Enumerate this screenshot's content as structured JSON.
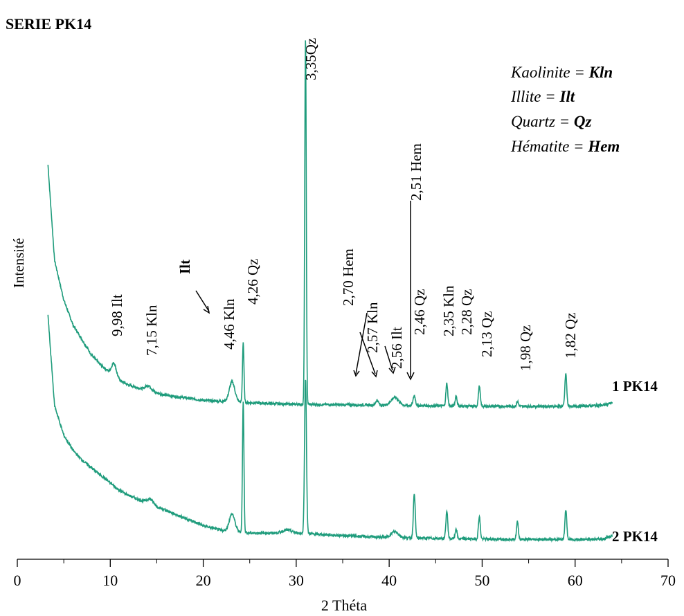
{
  "chart_data": {
    "type": "line",
    "title": "SERIE PK14",
    "xlabel": "2 Théta",
    "ylabel": "Intensité",
    "xlim": [
      0,
      70
    ],
    "ylim": [
      0,
      100
    ],
    "xticks": [
      "0",
      "10",
      "20",
      "30",
      "40",
      "50",
      "60",
      "70"
    ],
    "grid": false,
    "legend_position": "top-right",
    "legend": [
      {
        "name": "Kaolinite = ",
        "code": "Kln"
      },
      {
        "name": "Illite = ",
        "code": "Ilt"
      },
      {
        "name": "Quartz = ",
        "code": "Qz"
      },
      {
        "name": "Hématite = ",
        "code": "Hem"
      }
    ],
    "series": [
      {
        "name": "1 PK14",
        "color": "#1f9c7c",
        "baseline": 31,
        "background": [
          [
            3.3,
            79
          ],
          [
            4,
            60
          ],
          [
            5,
            52
          ],
          [
            6,
            47
          ],
          [
            7,
            44
          ],
          [
            8,
            41
          ],
          [
            9,
            39
          ],
          [
            10,
            37.5
          ],
          [
            11,
            36
          ],
          [
            12,
            35
          ],
          [
            14,
            34
          ],
          [
            16,
            33
          ],
          [
            18,
            32.5
          ],
          [
            20,
            32
          ],
          [
            22,
            31.8
          ],
          [
            25,
            31.5
          ],
          [
            30,
            31.2
          ],
          [
            40,
            31
          ],
          [
            50,
            30.8
          ],
          [
            60,
            30.8
          ],
          [
            63,
            31
          ],
          [
            64,
            31.5
          ]
        ],
        "peaks": [
          {
            "x": 10.4,
            "h": 2.5,
            "w": 0.25
          },
          {
            "x": 14.1,
            "h": 1.0,
            "w": 0.3
          },
          {
            "x": 23.1,
            "h": 4.0,
            "w": 0.3
          },
          {
            "x": 24.3,
            "h": 12.0,
            "w": 0.08
          },
          {
            "x": 31.0,
            "h": 73.0,
            "w": 0.08
          },
          {
            "x": 38.7,
            "h": 1.0,
            "w": 0.15
          },
          {
            "x": 40.6,
            "h": 1.6,
            "w": 0.4
          },
          {
            "x": 42.7,
            "h": 2.0,
            "w": 0.12
          },
          {
            "x": 46.2,
            "h": 4.5,
            "w": 0.1
          },
          {
            "x": 47.2,
            "h": 2.0,
            "w": 0.1
          },
          {
            "x": 49.7,
            "h": 4.0,
            "w": 0.1
          },
          {
            "x": 53.8,
            "h": 1.0,
            "w": 0.1
          },
          {
            "x": 59.0,
            "h": 6.5,
            "w": 0.1
          }
        ]
      },
      {
        "name": "2 PK14",
        "color": "#1f9c7c",
        "baseline": 4,
        "background": [
          [
            3.3,
            49
          ],
          [
            4,
            31
          ],
          [
            5,
            25
          ],
          [
            6,
            22
          ],
          [
            7,
            20
          ],
          [
            8,
            18.5
          ],
          [
            9,
            17
          ],
          [
            10,
            15.5
          ],
          [
            11,
            14
          ],
          [
            12,
            13
          ],
          [
            14,
            11.5
          ],
          [
            16,
            10
          ],
          [
            18,
            8.5
          ],
          [
            20,
            7
          ],
          [
            22,
            6
          ],
          [
            25,
            5.5
          ],
          [
            30,
            5.5
          ],
          [
            35,
            5
          ],
          [
            40,
            4.6
          ],
          [
            50,
            4.3
          ],
          [
            60,
            4.2
          ],
          [
            63,
            4.3
          ],
          [
            64,
            5
          ]
        ],
        "peaks": [
          {
            "x": 14.3,
            "h": 1.0,
            "w": 0.35
          },
          {
            "x": 23.1,
            "h": 3.5,
            "w": 0.3
          },
          {
            "x": 24.3,
            "h": 26.0,
            "w": 0.08
          },
          {
            "x": 29.0,
            "h": 0.6,
            "w": 0.5
          },
          {
            "x": 31.0,
            "h": 31.0,
            "w": 0.1
          },
          {
            "x": 40.6,
            "h": 1.2,
            "w": 0.4
          },
          {
            "x": 42.7,
            "h": 9.0,
            "w": 0.1
          },
          {
            "x": 46.2,
            "h": 5.5,
            "w": 0.1
          },
          {
            "x": 47.2,
            "h": 2.0,
            "w": 0.1
          },
          {
            "x": 49.7,
            "h": 4.5,
            "w": 0.1
          },
          {
            "x": 53.8,
            "h": 3.5,
            "w": 0.1
          },
          {
            "x": 59.0,
            "h": 6.0,
            "w": 0.1
          }
        ]
      }
    ],
    "annotations": [
      {
        "id": "ann-998",
        "text": "9,98 Ilt",
        "x": 10.4
      },
      {
        "id": "ann-715",
        "text": "7,15  Kln",
        "x": 14.0
      },
      {
        "id": "ann-ilt",
        "text": "Ilt",
        "x": 18.5
      },
      {
        "id": "ann-446",
        "text": "4,46 Kln",
        "x": 22.6
      },
      {
        "id": "ann-426",
        "text": "4,26 Qz",
        "x": 24.9
      },
      {
        "id": "ann-335",
        "text": "3,35Qz",
        "x": 31.0
      },
      {
        "id": "ann-270",
        "text": "2,70 Hem",
        "x": 35.8
      },
      {
        "id": "ann-257",
        "text": "2,57  Kln",
        "x": 38.0
      },
      {
        "id": "ann-256",
        "text": "2,56 Ilt",
        "x": 40.3
      },
      {
        "id": "ann-251",
        "text": "2,51 Hem",
        "x": 42.3
      },
      {
        "id": "ann-246",
        "text": "2,46 Qz",
        "x": 43.0
      },
      {
        "id": "ann-235",
        "text": "2,35 Kln",
        "x": 46.2
      },
      {
        "id": "ann-228",
        "text": "2,28  Qz",
        "x": 47.4
      },
      {
        "id": "ann-213",
        "text": "2,13  Qz",
        "x": 49.8
      },
      {
        "id": "ann-198",
        "text": "1,98  Qz",
        "x": 53.6
      },
      {
        "id": "ann-182",
        "text": "1,82  Qz",
        "x": 58.9
      }
    ]
  }
}
